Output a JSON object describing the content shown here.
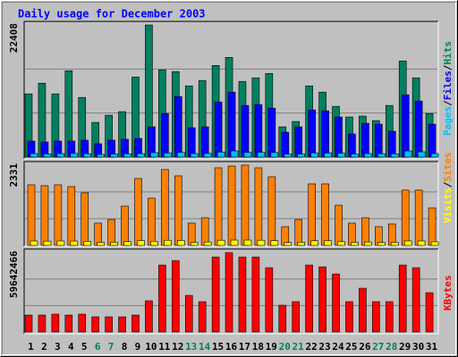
{
  "chart_data": [
    {
      "type": "bar",
      "title": "Daily usage for December 2003",
      "ylim": [
        0,
        22408
      ],
      "yticks": [
        22408
      ],
      "legend_separator": "/",
      "series": [
        {
          "name": "Hits",
          "color": "#008060",
          "values": [
            10720,
            12530,
            10720,
            14650,
            10120,
            5890,
            7100,
            7700,
            13590,
            22408,
            14800,
            14500,
            12080,
            12990,
            15550,
            16910,
            12840,
            13440,
            14190,
            5130,
            6040,
            12080,
            11020,
            8610,
            6800,
            6950,
            6190,
            8760,
            16310,
            13440,
            7400
          ]
        },
        {
          "name": "Files",
          "color": "#0000ff",
          "values": [
            2720,
            2570,
            2720,
            2720,
            2870,
            2270,
            2870,
            3020,
            3170,
            5130,
            7400,
            10270,
            4980,
            5130,
            9360,
            11020,
            8760,
            8910,
            8300,
            4230,
            5130,
            8000,
            7850,
            6800,
            3930,
            5740,
            5590,
            4380,
            10570,
            9510,
            5590
          ]
        },
        {
          "name": "Pages",
          "color": "#00c0ff",
          "values": [
            600,
            550,
            600,
            620,
            580,
            450,
            500,
            560,
            600,
            750,
            700,
            800,
            600,
            620,
            850,
            1050,
            800,
            820,
            780,
            500,
            520,
            700,
            700,
            650,
            520,
            600,
            580,
            560,
            1050,
            900,
            600
          ]
        }
      ]
    },
    {
      "type": "bar",
      "ylim": [
        0,
        2331
      ],
      "yticks": [
        2331
      ],
      "legend_separator": "/",
      "series": [
        {
          "name": "Sites",
          "color": "#ff8000",
          "values": [
            1761,
            1735,
            1761,
            1709,
            1528,
            648,
            751,
            1140,
            1943,
            1373,
            2202,
            2020,
            648,
            803,
            2253,
            2305,
            2331,
            2253,
            1994,
            544,
            751,
            1787,
            1787,
            1166,
            648,
            803,
            544,
            622,
            1606,
            1606,
            1088
          ]
        },
        {
          "name": "Visits",
          "color": "#ffff00",
          "values": [
            130,
            125,
            130,
            128,
            120,
            90,
            95,
            110,
            140,
            120,
            150,
            145,
            90,
            100,
            150,
            155,
            155,
            150,
            140,
            85,
            95,
            135,
            135,
            110,
            90,
            100,
            85,
            90,
            130,
            130,
            105
          ]
        }
      ]
    },
    {
      "type": "bar",
      "ylim": [
        0,
        59642466
      ],
      "yticks": [
        59642466
      ],
      "categories": [
        "1",
        "2",
        "3",
        "4",
        "5",
        "6",
        "7",
        "8",
        "9",
        "10",
        "11",
        "12",
        "13",
        "14",
        "15",
        "16",
        "17",
        "18",
        "19",
        "20",
        "21",
        "22",
        "23",
        "24",
        "25",
        "26",
        "27",
        "28",
        "29",
        "30",
        "31"
      ],
      "category_colors": [
        "#000000",
        "#000000",
        "#000000",
        "#000000",
        "#000000",
        "#008060",
        "#008060",
        "#000000",
        "#000000",
        "#000000",
        "#000000",
        "#000000",
        "#008060",
        "#008060",
        "#000000",
        "#000000",
        "#000000",
        "#000000",
        "#000000",
        "#008060",
        "#008060",
        "#000000",
        "#000000",
        "#000000",
        "#000000",
        "#000000",
        "#008060",
        "#008060",
        "#000000",
        "#000000",
        "#000000"
      ],
      "series": [
        {
          "name": "KBytes",
          "color": "#ff0000",
          "values": [
            12733000,
            12733000,
            13403000,
            12733000,
            13403000,
            11392000,
            11392000,
            11392000,
            12733000,
            23455000,
            50261000,
            53611000,
            27476000,
            22785000,
            56292000,
            59642466,
            56292000,
            56292000,
            48250000,
            20105000,
            22785000,
            50261000,
            48920000,
            43559000,
            22785000,
            32837000,
            22785000,
            22785000,
            50261000,
            48250000,
            29486000
          ]
        }
      ]
    }
  ]
}
